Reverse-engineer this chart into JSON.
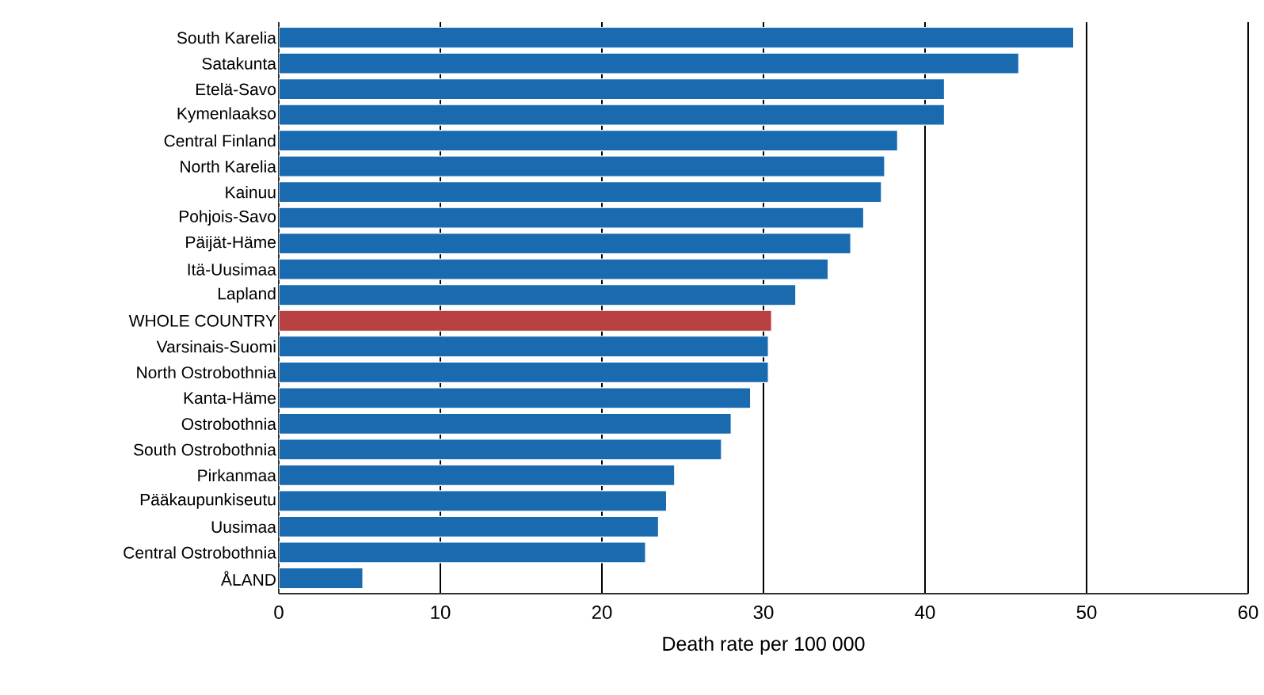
{
  "chart_data": {
    "type": "bar",
    "orientation": "horizontal",
    "xlabel": "Death rate per 100 000",
    "categories": [
      "South Karelia",
      "Satakunta",
      "Etelä-Savo",
      "Kymenlaakso",
      "Central Finland",
      "North Karelia",
      "Kainuu",
      "Pohjois-Savo",
      "Päijät-Häme",
      "Itä-Uusimaa",
      "Lapland",
      "WHOLE COUNTRY",
      "Varsinais-Suomi",
      "North Ostrobothnia",
      "Kanta-Häme",
      "Ostrobothnia",
      "South Ostrobothnia",
      "Pirkanmaa",
      "Pääkaupunkiseutu",
      "Uusimaa",
      "Central Ostrobothnia",
      "ÅLAND"
    ],
    "values": [
      49.2,
      45.8,
      41.2,
      41.2,
      38.3,
      37.5,
      37.3,
      36.2,
      35.4,
      34.0,
      32.0,
      30.5,
      30.3,
      30.3,
      29.2,
      28.0,
      27.4,
      24.5,
      24.0,
      23.5,
      22.7,
      5.2
    ],
    "colors": [
      "#1a6ab0",
      "#1a6ab0",
      "#1a6ab0",
      "#1a6ab0",
      "#1a6ab0",
      "#1a6ab0",
      "#1a6ab0",
      "#1a6ab0",
      "#1a6ab0",
      "#1a6ab0",
      "#1a6ab0",
      "#b94040",
      "#1a6ab0",
      "#1a6ab0",
      "#1a6ab0",
      "#1a6ab0",
      "#1a6ab0",
      "#1a6ab0",
      "#1a6ab0",
      "#1a6ab0",
      "#1a6ab0",
      "#1a6ab0"
    ],
    "xlim": [
      0,
      60
    ],
    "xticks": [
      0,
      10,
      20,
      30,
      40,
      50,
      60
    ],
    "grid": "x"
  }
}
